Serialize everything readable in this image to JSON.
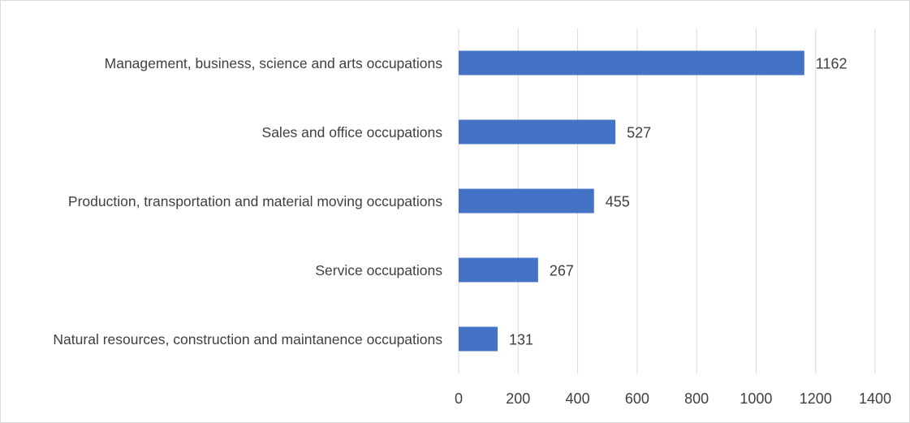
{
  "chart_data": {
    "type": "bar",
    "orientation": "horizontal",
    "categories": [
      "Management, business, science and arts occupations",
      "Sales and office occupations",
      "Production, transportation and material moving occupations",
      "Service occupations",
      "Natural resources, construction and maintanence occupations"
    ],
    "values": [
      1162,
      527,
      455,
      267,
      131
    ],
    "color": "#4472c4",
    "xlim": [
      0,
      1400
    ],
    "xticks": [
      0,
      200,
      400,
      600,
      800,
      1000,
      1200,
      1400
    ],
    "grid": true
  }
}
